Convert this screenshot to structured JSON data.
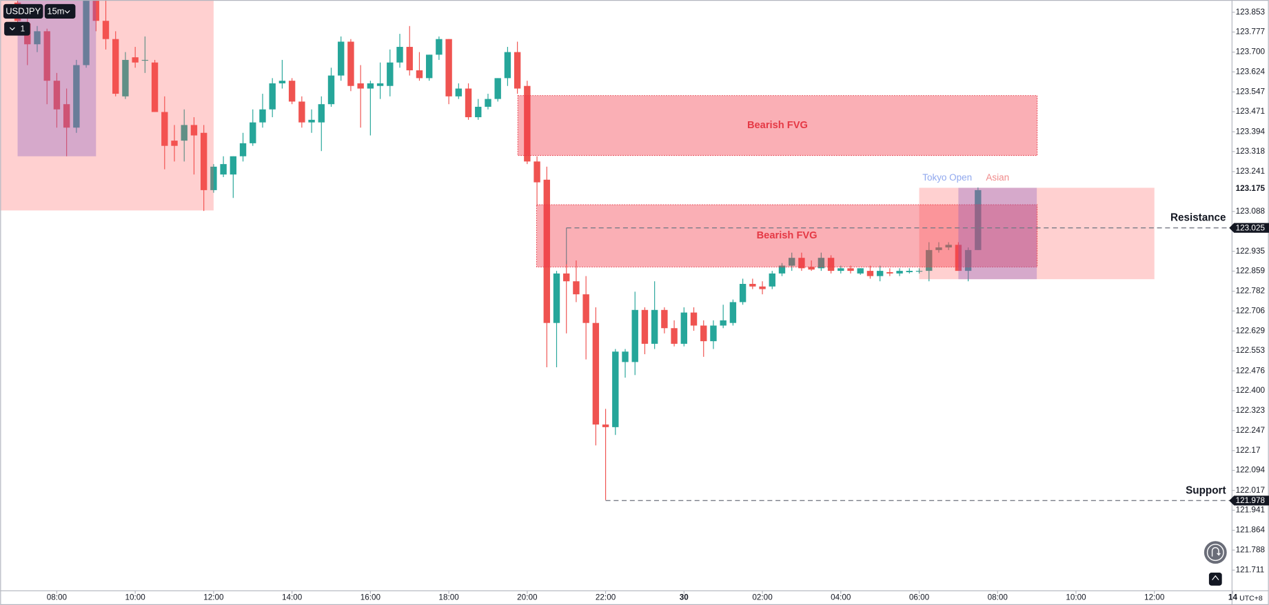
{
  "chart_data": {
    "type": "candlestick",
    "symbol": "USDJPY",
    "interval": "15m",
    "layout_count": "1",
    "timezone": "UTC+8",
    "up_color": "#26a69a",
    "down_color": "#ef5350",
    "xlim": [
      6.555,
      37.97
    ],
    "xticks": [
      {
        "value": 8,
        "label": "08:00"
      },
      {
        "value": 10,
        "label": "10:00"
      },
      {
        "value": 12,
        "label": "12:00"
      },
      {
        "value": 14,
        "label": "14:00"
      },
      {
        "value": 16,
        "label": "16:00"
      },
      {
        "value": 18,
        "label": "18:00"
      },
      {
        "value": 20,
        "label": "20:00"
      },
      {
        "value": 22,
        "label": "22:00"
      },
      {
        "value": 24,
        "label": "30"
      },
      {
        "value": 26,
        "label": "02:00"
      },
      {
        "value": 28,
        "label": "04:00"
      },
      {
        "value": 30,
        "label": "06:00"
      },
      {
        "value": 32,
        "label": "08:00"
      },
      {
        "value": 34,
        "label": "10:00"
      },
      {
        "value": 36,
        "label": "12:00"
      },
      {
        "value": 38,
        "label": "14"
      }
    ],
    "ylim": [
      121.633,
      123.9
    ],
    "yticks": [
      123.853,
      123.777,
      {
        "value": 123.7,
        "label": "123.700"
      },
      123.624,
      123.547,
      123.471,
      123.394,
      123.318,
      123.241,
      123.088,
      122.935,
      122.859,
      122.782,
      122.706,
      122.629,
      122.553,
      122.476,
      {
        "value": 122.4,
        "label": "122.400"
      },
      122.323,
      122.247,
      122.17,
      122.094,
      122.017,
      121.941,
      121.864,
      121.788,
      121.711
    ],
    "last_price": 123.175,
    "x": [
      7,
      7.25,
      7.5,
      7.75,
      8,
      8.25,
      8.5,
      8.75,
      9,
      9.25,
      9.5,
      9.75,
      10,
      10.25,
      10.5,
      10.75,
      11,
      11.25,
      11.5,
      11.75,
      12,
      12.25,
      12.5,
      12.75,
      13,
      13.25,
      13.5,
      13.75,
      14,
      14.25,
      14.5,
      14.75,
      15,
      15.25,
      15.5,
      15.75,
      16,
      16.25,
      16.5,
      16.75,
      17,
      17.25,
      17.5,
      17.75,
      18,
      18.25,
      18.5,
      18.75,
      19,
      19.25,
      19.5,
      19.75,
      20,
      20.25,
      20.5,
      20.75,
      21,
      21.25,
      21.5,
      21.75,
      22,
      22.25,
      22.5,
      22.75,
      23,
      23.25,
      23.5,
      23.75,
      24,
      24.25,
      24.5,
      24.75,
      25,
      25.25,
      25.5,
      25.75,
      26,
      26.25,
      26.5,
      26.75,
      27,
      27.25,
      27.5,
      27.75,
      28,
      28.25,
      28.5,
      28.75,
      29,
      29.25,
      29.5,
      29.75,
      30,
      30.25,
      30.5,
      30.75,
      31,
      31.25,
      31.5
    ],
    "open": [
      123.89,
      123.81,
      123.73,
      123.78,
      123.59,
      123.5,
      123.41,
      123.65,
      123.9,
      123.82,
      123.75,
      123.53,
      123.68,
      123.67,
      123.66,
      123.47,
      123.36,
      123.36,
      123.42,
      123.39,
      123.17,
      123.23,
      123.23,
      123.3,
      123.35,
      123.43,
      123.48,
      123.58,
      123.59,
      123.51,
      123.43,
      123.43,
      123.5,
      123.61,
      123.74,
      123.58,
      123.56,
      123.57,
      123.57,
      123.66,
      123.72,
      123.63,
      123.6,
      123.69,
      123.75,
      123.53,
      123.56,
      123.45,
      123.49,
      123.52,
      123.6,
      123.7,
      123.57,
      123.28,
      123.21,
      122.66,
      122.85,
      122.82,
      122.77,
      122.66,
      122.27,
      122.26,
      122.51,
      122.51,
      122.71,
      122.58,
      122.71,
      122.64,
      122.58,
      122.7,
      122.65,
      122.59,
      122.65,
      122.66,
      122.74,
      122.81,
      122.8,
      122.8,
      122.85,
      122.88,
      122.91,
      122.875,
      122.87,
      122.91,
      122.86,
      122.87,
      122.85,
      122.86,
      122.84,
      122.855,
      122.85,
      122.855,
      122.86,
      122.86,
      122.94,
      122.95,
      122.96,
      122.86,
      122.94
    ],
    "high": [
      123.9,
      123.83,
      123.8,
      123.79,
      123.62,
      123.56,
      123.67,
      123.9,
      123.9,
      123.9,
      123.78,
      123.7,
      123.72,
      123.76,
      123.67,
      123.53,
      123.42,
      123.48,
      123.45,
      123.42,
      123.27,
      123.3,
      123.3,
      123.39,
      123.48,
      123.54,
      123.6,
      123.67,
      123.6,
      123.53,
      123.48,
      123.53,
      123.64,
      123.76,
      123.75,
      123.65,
      123.59,
      123.66,
      123.71,
      123.77,
      123.8,
      123.7,
      123.69,
      123.76,
      123.75,
      123.58,
      123.58,
      123.52,
      123.54,
      123.6,
      123.72,
      123.74,
      123.59,
      123.3,
      123.26,
      122.86,
      122.9,
      122.9,
      122.84,
      122.72,
      122.33,
      122.56,
      122.56,
      122.78,
      122.72,
      122.82,
      122.72,
      122.67,
      122.72,
      122.72,
      122.67,
      122.67,
      122.73,
      122.75,
      122.83,
      122.83,
      122.82,
      122.86,
      122.89,
      122.93,
      122.93,
      122.9,
      122.93,
      122.92,
      122.88,
      122.88,
      122.87,
      122.88,
      122.88,
      122.87,
      122.87,
      122.87,
      122.87,
      122.97,
      122.97,
      122.97,
      122.97,
      122.95,
      123.18
    ],
    "low": [
      123.77,
      123.65,
      123.7,
      123.5,
      123.41,
      123.3,
      123.39,
      123.64,
      123.78,
      123.71,
      123.53,
      123.52,
      123.64,
      123.62,
      123.47,
      123.25,
      123.28,
      123.28,
      123.23,
      123.09,
      123.16,
      123.22,
      123.14,
      123.28,
      123.34,
      123.41,
      123.45,
      123.56,
      123.5,
      123.41,
      123.39,
      123.32,
      123.49,
      123.59,
      123.55,
      123.41,
      123.38,
      123.52,
      123.53,
      123.64,
      123.61,
      123.59,
      123.59,
      123.67,
      123.5,
      123.52,
      123.44,
      123.44,
      123.48,
      123.51,
      123.57,
      123.54,
      123.27,
      123.11,
      122.49,
      122.49,
      122.62,
      122.74,
      122.52,
      122.19,
      121.98,
      122.23,
      122.45,
      122.46,
      122.54,
      122.56,
      122.62,
      122.57,
      122.57,
      122.63,
      122.53,
      122.56,
      122.64,
      122.65,
      122.73,
      122.79,
      122.77,
      122.79,
      122.84,
      122.86,
      122.86,
      122.86,
      122.86,
      122.85,
      122.85,
      122.85,
      122.845,
      122.83,
      122.82,
      122.84,
      122.84,
      122.85,
      122.85,
      122.82,
      122.93,
      122.94,
      122.86,
      122.82,
      122.94
    ],
    "close": [
      123.82,
      123.73,
      123.78,
      123.59,
      123.48,
      123.41,
      123.65,
      123.9,
      123.82,
      123.75,
      123.54,
      123.67,
      123.66,
      123.67,
      123.47,
      123.34,
      123.34,
      123.42,
      123.38,
      123.17,
      123.26,
      123.27,
      123.3,
      123.35,
      123.43,
      123.48,
      123.58,
      123.59,
      123.51,
      123.43,
      123.44,
      123.5,
      123.61,
      123.74,
      123.57,
      123.56,
      123.58,
      123.58,
      123.66,
      123.72,
      123.63,
      123.6,
      123.69,
      123.75,
      123.53,
      123.56,
      123.45,
      123.49,
      123.52,
      123.6,
      123.7,
      123.56,
      123.28,
      123.2,
      122.66,
      122.85,
      122.82,
      122.77,
      122.66,
      122.27,
      122.26,
      122.55,
      122.55,
      122.71,
      122.58,
      122.71,
      122.64,
      122.58,
      122.7,
      122.65,
      122.59,
      122.65,
      122.67,
      122.74,
      122.81,
      122.8,
      122.79,
      122.85,
      122.88,
      122.91,
      122.87,
      122.865,
      122.91,
      122.86,
      122.87,
      122.86,
      122.87,
      122.84,
      122.86,
      122.85,
      122.86,
      122.86,
      122.86,
      122.94,
      122.95,
      122.96,
      122.86,
      122.94,
      123.17
    ],
    "zones": [
      {
        "x": [
          6.0,
          12.0
        ],
        "y": [
          123.092,
          124.0
        ],
        "color": "rgba(255,82,82,0.27)"
      },
      {
        "x": [
          7.0,
          9.0
        ],
        "y": [
          123.3,
          124.0
        ],
        "color": "rgba(126,87,194,0.32)"
      },
      {
        "name": "Bearish FVG",
        "x": [
          19.76,
          33.01
        ],
        "y": [
          123.303,
          123.533
        ],
        "color": "rgba(242,54,69,0.4)"
      },
      {
        "name": "Bearish FVG",
        "x": [
          20.24,
          33.01
        ],
        "y": [
          122.875,
          123.114
        ],
        "color": "rgba(242,54,69,0.4)"
      },
      {
        "name": "Tokyo Open",
        "x": [
          30.0,
          36.0
        ],
        "y": [
          122.828,
          123.179
        ],
        "color": "rgba(255,82,82,0.27)",
        "text_color": "#90a8ee"
      },
      {
        "name": "Asian",
        "x": [
          31.0,
          33.0
        ],
        "y": [
          122.828,
          123.179
        ],
        "color": "rgba(126,87,194,0.32)",
        "text_color": "#f08a8a"
      }
    ],
    "levels": [
      {
        "name": "Resistance",
        "value": 123.025,
        "from": 21.0
      },
      {
        "name": "Support",
        "value": 121.978,
        "from": 22.0
      }
    ]
  }
}
